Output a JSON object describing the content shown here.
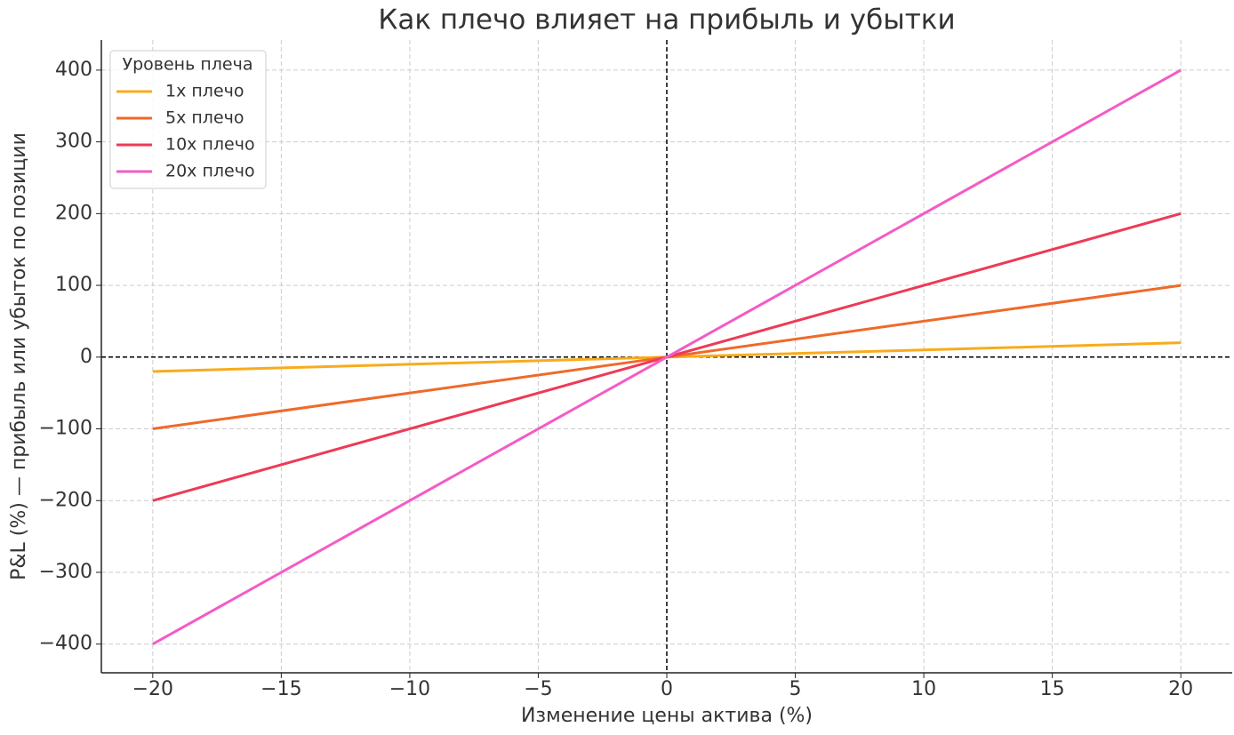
{
  "chart_data": {
    "type": "line",
    "title": "Как плечо влияет на прибыль и убытки",
    "x_label": "Изменение цены актива (%)",
    "y_label": "P&L (%) — прибыль или убыток по позиции",
    "x": [
      -20,
      0,
      20
    ],
    "series": [
      {
        "name": "1x плечо",
        "color": "#f9ab1b",
        "values": [
          -20,
          0,
          20
        ]
      },
      {
        "name": "5x плечо",
        "color": "#ef6a2a",
        "values": [
          -100,
          0,
          100
        ]
      },
      {
        "name": "10x плечо",
        "color": "#ee3a56",
        "values": [
          -200,
          0,
          200
        ]
      },
      {
        "name": "20x плечо",
        "color": "#f45bc6",
        "values": [
          -400,
          0,
          400
        ]
      }
    ],
    "legend_title": "Уровень плеча",
    "legend": "upper left",
    "xlim": [
      -22,
      22
    ],
    "ylim": [
      -440,
      442
    ],
    "xticks": [
      {
        "value": -20,
        "label": "−20"
      },
      {
        "value": -15,
        "label": "−15"
      },
      {
        "value": -10,
        "label": "−10"
      },
      {
        "value": -5,
        "label": "−5"
      },
      0,
      5,
      10,
      15,
      20
    ],
    "yticks": [
      {
        "value": -400,
        "label": "−400"
      },
      {
        "value": -300,
        "label": "−300"
      },
      {
        "value": -200,
        "label": "−200"
      },
      {
        "value": -100,
        "label": "−100"
      },
      0,
      100,
      200,
      300,
      400
    ],
    "grid": true,
    "zero_lines": true
  }
}
